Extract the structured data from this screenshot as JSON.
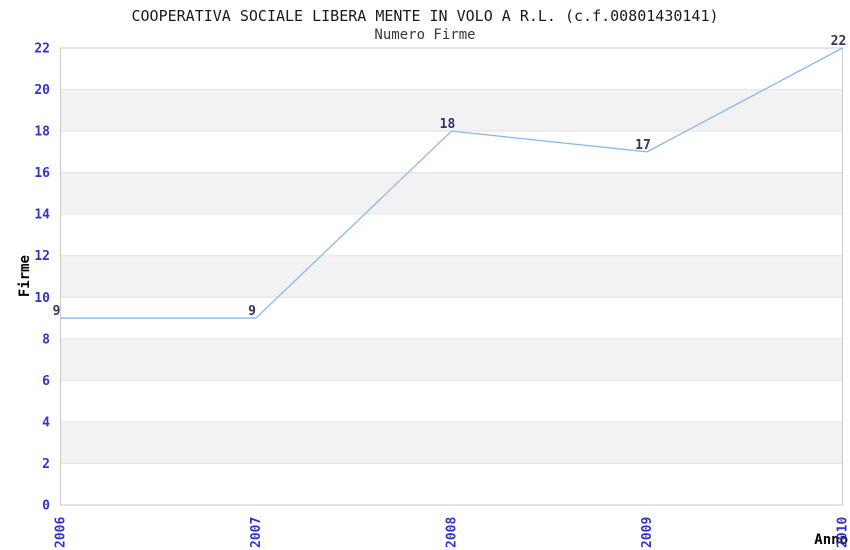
{
  "chart_data": {
    "type": "line",
    "title": "COOPERATIVA SOCIALE LIBERA MENTE IN VOLO A R.L. (c.f.00801430141)",
    "subtitle": "Numero Firme",
    "xlabel": "Anno",
    "ylabel": "Firme",
    "categories": [
      "2006",
      "2007",
      "2008",
      "2009",
      "2010"
    ],
    "values": [
      9,
      9,
      18,
      17,
      22
    ],
    "data_labels": [
      "9",
      "9",
      "18",
      "17",
      "22"
    ],
    "ylim": [
      0,
      22
    ],
    "y_tick_step": 2,
    "y_ticks": [
      0,
      2,
      4,
      6,
      8,
      10,
      12,
      14,
      16,
      18,
      20,
      22
    ],
    "grid": "horizontal-alternating-bands",
    "legend": "none",
    "colors": {
      "line": "#8cb8e8",
      "axis_tick_label": "#3333cc",
      "data_label": "#333366",
      "band_gray": "#f2f2f2",
      "band_white": "#ffffff",
      "grid_line": "#e3e3e3",
      "plot_border": "#c9c9c9"
    }
  }
}
